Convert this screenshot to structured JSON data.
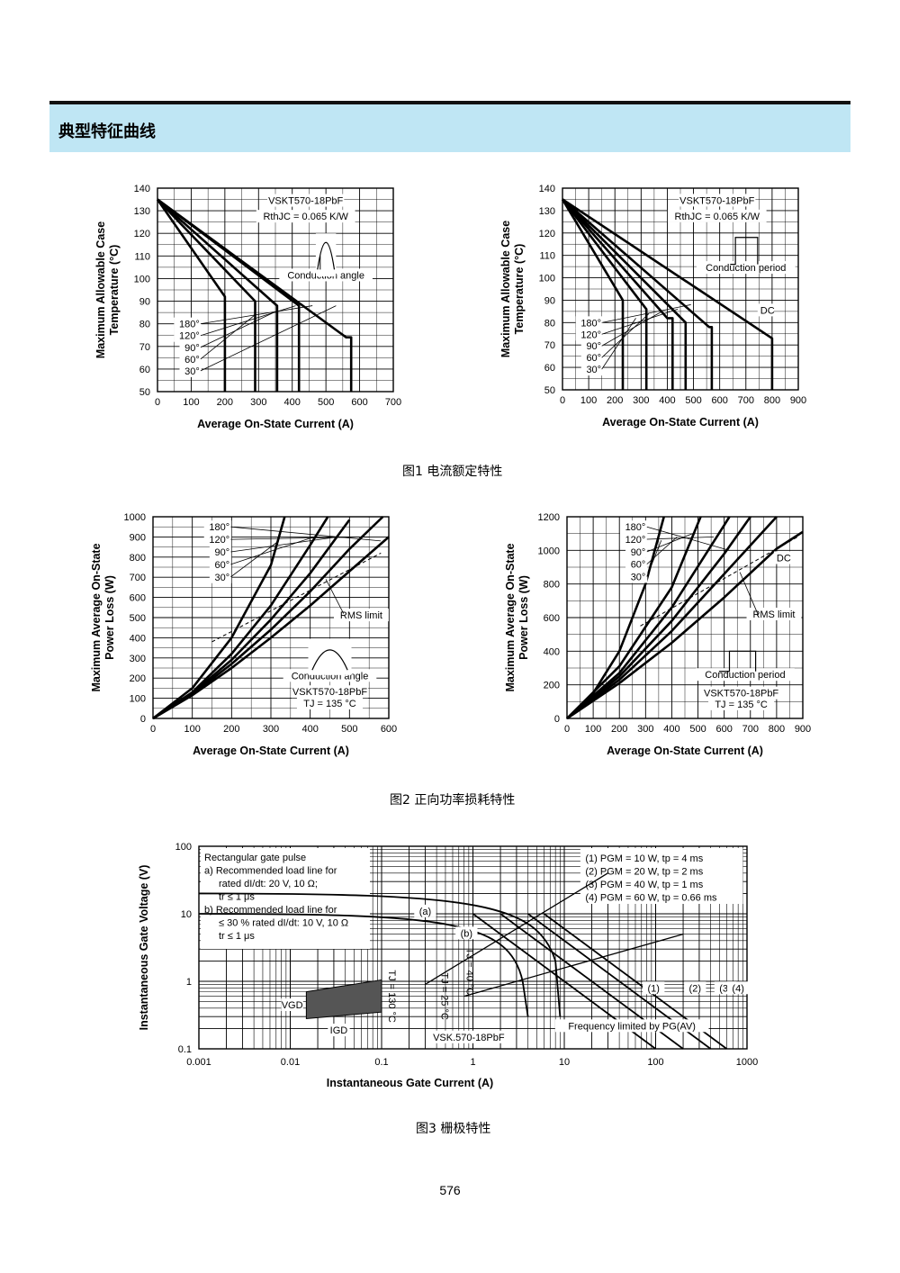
{
  "section_title": "典型特征曲线",
  "captions": {
    "fig1": "图1 电流额定特性",
    "fig2": "图2 正向功率损耗特性",
    "fig3": "图3 栅极特性"
  },
  "page_number": "576",
  "chart_data": [
    {
      "type": "line",
      "id": "fig1-left",
      "title": "",
      "xlabel": "Average On-State Current (A)",
      "ylabel": "Maximum Allowable Case Temperature (°C)",
      "xlim": [
        0,
        700
      ],
      "ylim": [
        50,
        140
      ],
      "xticks": [
        "0",
        "100",
        "200",
        "300",
        "400",
        "500",
        "600",
        "700"
      ],
      "yticks": [
        "50",
        "60",
        "70",
        "80",
        "90",
        "100",
        "110",
        "120",
        "130",
        "140"
      ],
      "annotations": [
        "VSKT570-18PbF",
        "RthJC = 0.065 K/W",
        "Conduction angle"
      ],
      "series": [
        {
          "name": "30°",
          "x": [
            0,
            200,
            200
          ],
          "y": [
            135,
            92,
            50
          ]
        },
        {
          "name": "60°",
          "x": [
            0,
            290,
            290
          ],
          "y": [
            135,
            90,
            50
          ]
        },
        {
          "name": "90°",
          "x": [
            0,
            355,
            355
          ],
          "y": [
            135,
            88,
            50
          ]
        },
        {
          "name": "120°",
          "x": [
            0,
            420,
            420
          ],
          "y": [
            135,
            88,
            50
          ]
        },
        {
          "name": "180°",
          "x": [
            0,
            560,
            575,
            575
          ],
          "y": [
            135,
            74,
            74,
            50
          ]
        }
      ]
    },
    {
      "type": "line",
      "id": "fig1-right",
      "title": "",
      "xlabel": "Average On-State Current (A)",
      "ylabel": "Maximum Allowable Case Temperature (°C)",
      "xlim": [
        0,
        900
      ],
      "ylim": [
        50,
        140
      ],
      "xticks": [
        "0",
        "100",
        "200",
        "300",
        "400",
        "500",
        "600",
        "700",
        "800",
        "900"
      ],
      "yticks": [
        "50",
        "60",
        "70",
        "80",
        "90",
        "100",
        "110",
        "120",
        "130",
        "140"
      ],
      "annotations": [
        "VSKT570-18PbF",
        "RthJC = 0.065 K/W",
        "Conduction period",
        "DC"
      ],
      "series": [
        {
          "name": "30°",
          "x": [
            0,
            230,
            230
          ],
          "y": [
            135,
            90,
            50
          ]
        },
        {
          "name": "60°",
          "x": [
            0,
            320,
            320
          ],
          "y": [
            135,
            86,
            50
          ]
        },
        {
          "name": "90°",
          "x": [
            0,
            400,
            420,
            420
          ],
          "y": [
            135,
            82,
            82,
            50
          ]
        },
        {
          "name": "120°",
          "x": [
            0,
            470,
            470
          ],
          "y": [
            135,
            80,
            50
          ]
        },
        {
          "name": "180°",
          "x": [
            0,
            560,
            570,
            570
          ],
          "y": [
            135,
            78,
            78,
            50
          ]
        },
        {
          "name": "DC",
          "x": [
            0,
            800,
            800
          ],
          "y": [
            135,
            73,
            50
          ]
        }
      ]
    },
    {
      "type": "line",
      "id": "fig2-left",
      "title": "",
      "xlabel": "Average On-State Current (A)",
      "ylabel": "Maximum Average On-State Power Loss (W)",
      "xlim": [
        0,
        600
      ],
      "ylim": [
        0,
        1000
      ],
      "xticks": [
        "0",
        "100",
        "200",
        "300",
        "400",
        "500",
        "600"
      ],
      "yticks": [
        "0",
        "100",
        "200",
        "300",
        "400",
        "500",
        "600",
        "700",
        "800",
        "900",
        "1000"
      ],
      "annotations": [
        "RMS limit",
        "Conduction angle",
        "VSKT570-18PbF",
        "TJ = 135 °C"
      ],
      "series": [
        {
          "name": "180°",
          "x": [
            0,
            100,
            200,
            300,
            400,
            500,
            600
          ],
          "y": [
            0,
            115,
            250,
            400,
            560,
            730,
            900
          ]
        },
        {
          "name": "120°",
          "x": [
            0,
            100,
            200,
            300,
            400,
            500,
            585
          ],
          "y": [
            0,
            120,
            270,
            440,
            630,
            840,
            1000
          ]
        },
        {
          "name": "90°",
          "x": [
            0,
            100,
            200,
            300,
            400,
            500
          ],
          "y": [
            0,
            125,
            290,
            490,
            720,
            985
          ]
        },
        {
          "name": "60°",
          "x": [
            0,
            100,
            200,
            300,
            400,
            445
          ],
          "y": [
            0,
            130,
            320,
            560,
            860,
            1000
          ]
        },
        {
          "name": "30°",
          "x": [
            0,
            100,
            200,
            300,
            335
          ],
          "y": [
            0,
            150,
            400,
            760,
            1000
          ]
        }
      ]
    },
    {
      "type": "line",
      "id": "fig2-right",
      "title": "",
      "xlabel": "Average On-State Current (A)",
      "ylabel": "Maximum Average On-State Power Loss (W)",
      "xlim": [
        0,
        900
      ],
      "ylim": [
        0,
        1200
      ],
      "xticks": [
        "0",
        "100",
        "200",
        "300",
        "400",
        "500",
        "600",
        "700",
        "800",
        "900"
      ],
      "yticks": [
        "0",
        "200",
        "400",
        "600",
        "800",
        "1000",
        "1200"
      ],
      "annotations": [
        "DC",
        "RMS limit",
        "Conduction period",
        "VSKT570-18PbF",
        "TJ = 135 °C"
      ],
      "series": [
        {
          "name": "DC",
          "x": [
            0,
            200,
            400,
            600,
            800,
            900
          ],
          "y": [
            0,
            210,
            450,
            720,
            1010,
            1110
          ]
        },
        {
          "name": "180°",
          "x": [
            0,
            200,
            400,
            600,
            800
          ],
          "y": [
            0,
            230,
            520,
            860,
            1200
          ]
        },
        {
          "name": "120°",
          "x": [
            0,
            200,
            400,
            600,
            700
          ],
          "y": [
            0,
            250,
            580,
            980,
            1200
          ]
        },
        {
          "name": "90°",
          "x": [
            0,
            200,
            400,
            600,
            620
          ],
          "y": [
            0,
            270,
            660,
            1150,
            1200
          ]
        },
        {
          "name": "60°",
          "x": [
            0,
            200,
            400,
            510
          ],
          "y": [
            0,
            310,
            780,
            1200
          ]
        },
        {
          "name": "30°",
          "x": [
            0,
            100,
            200,
            300,
            370
          ],
          "y": [
            0,
            150,
            400,
            800,
            1200
          ]
        }
      ]
    },
    {
      "type": "line",
      "id": "fig3",
      "title": "",
      "xlabel": "Instantaneous Gate Current (A)",
      "ylabel": "Instantaneous Gate Voltage (V)",
      "xscale": "log",
      "yscale": "log",
      "xlim": [
        0.001,
        1000
      ],
      "ylim": [
        0.1,
        100
      ],
      "xticks": [
        "0.001",
        "0.01",
        "0.1",
        "1",
        "10",
        "100",
        "1000"
      ],
      "yticks": [
        "0.1",
        "1",
        "10",
        "100"
      ],
      "notes": [
        "Rectangular gate pulse",
        "a) Recommended load line for",
        "rated dI/dt: 20 V, 10 Ω;",
        "tr ≤ 1 μs",
        "b) Recommended load line for",
        "≤ 30 % rated dI/dt: 10 V, 10 Ω",
        "tr ≤ 1 μs"
      ],
      "legend": [
        "(1) PGM = 10 W, tp = 4 ms",
        "(2) PGM = 20 W, tp = 2 ms",
        "(3) PGM = 40 W, tp = 1 ms",
        "(4) PGM = 60 W, tp = 0.66 ms"
      ],
      "labels": [
        "(a)",
        "(b)",
        "TJ = 40 °C",
        "TJ = 25 °C",
        "TJ = 130 °C",
        "VGD",
        "IGD",
        "VSK.570-18PbF",
        "Frequency limited by PG(AV)",
        "(1)",
        "(2)",
        "(3)",
        "(4)"
      ],
      "series": [
        {
          "name": "(1)",
          "x": [
            1,
            100
          ],
          "y": [
            10,
            0.1
          ]
        },
        {
          "name": "(2)",
          "x": [
            2,
            200
          ],
          "y": [
            10,
            0.1
          ]
        },
        {
          "name": "(3)",
          "x": [
            4,
            400
          ],
          "y": [
            10,
            0.1
          ]
        },
        {
          "name": "(4)",
          "x": [
            6,
            600
          ],
          "y": [
            10,
            0.1
          ]
        }
      ]
    }
  ]
}
